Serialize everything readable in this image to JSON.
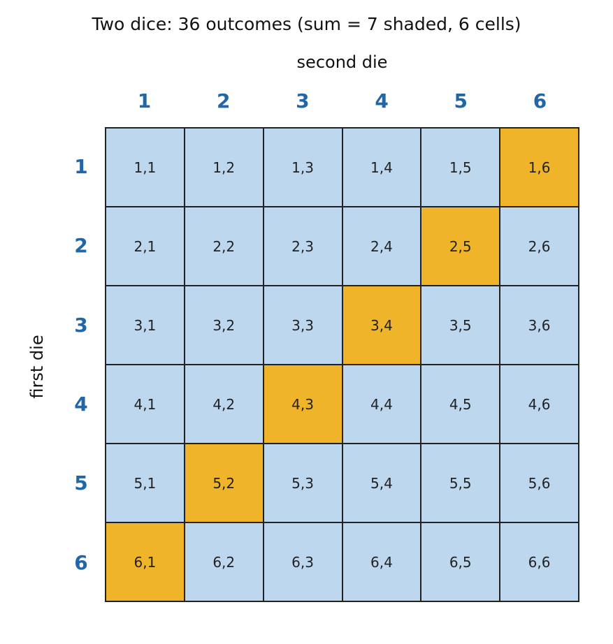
{
  "title": "Two dice: 36 outcomes (sum = 7 shaded, 6 cells)",
  "xlabel": "second die",
  "ylabel": "first die",
  "colors": {
    "header": "#2166a6",
    "cell": "#bdd7ee",
    "highlight": "#f0b42a",
    "border": "#222222"
  },
  "column_headers": [
    "1",
    "2",
    "3",
    "4",
    "5",
    "6"
  ],
  "row_headers": [
    "1",
    "2",
    "3",
    "4",
    "5",
    "6"
  ],
  "cells": [
    [
      "1,1",
      "1,2",
      "1,3",
      "1,4",
      "1,5",
      "1,6"
    ],
    [
      "2,1",
      "2,2",
      "2,3",
      "2,4",
      "2,5",
      "2,6"
    ],
    [
      "3,1",
      "3,2",
      "3,3",
      "3,4",
      "3,5",
      "3,6"
    ],
    [
      "4,1",
      "4,2",
      "4,3",
      "4,4",
      "4,5",
      "4,6"
    ],
    [
      "5,1",
      "5,2",
      "5,3",
      "5,4",
      "5,5",
      "5,6"
    ],
    [
      "6,1",
      "6,2",
      "6,3",
      "6,4",
      "6,5",
      "6,6"
    ]
  ],
  "highlighted_cells": [
    "1,6",
    "2,5",
    "3,4",
    "4,3",
    "5,2",
    "6,1"
  ]
}
